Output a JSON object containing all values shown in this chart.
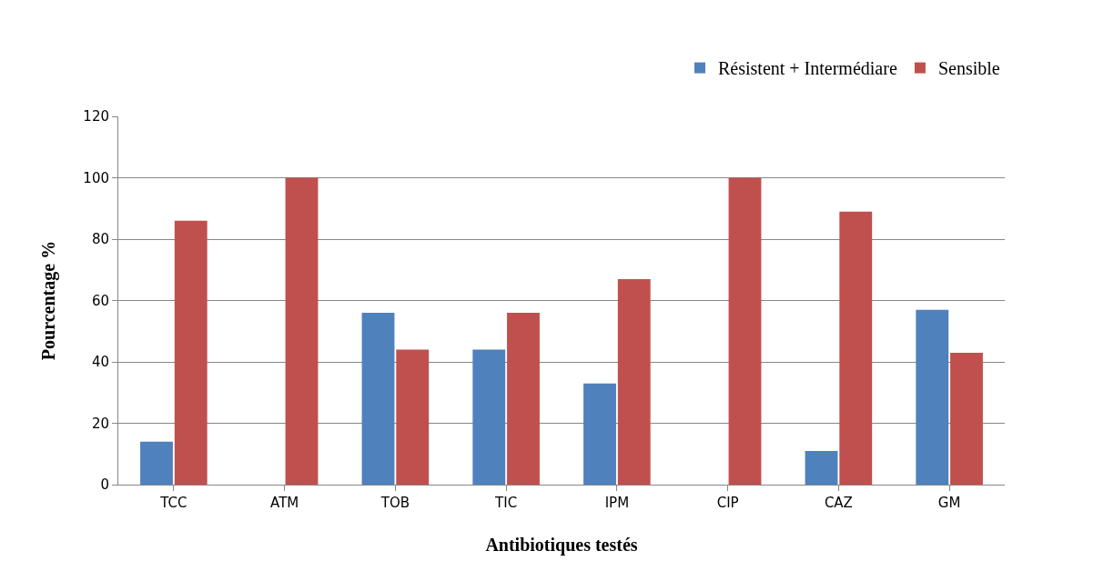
{
  "chart_data": {
    "type": "bar",
    "xlabel": "Antibiotiques testés",
    "ylabel": "Pourcentage %",
    "categories": [
      "TCC",
      "ATM",
      "TOB",
      "TIC",
      "IPM",
      "CIP",
      "CAZ",
      "GM"
    ],
    "series": [
      {
        "name": "Résistent + Intermédiare",
        "color": "#4f81bd",
        "values": [
          14,
          0,
          56,
          44,
          33,
          0,
          11,
          57
        ]
      },
      {
        "name": "Sensible",
        "color": "#c0504d",
        "values": [
          86,
          100,
          44,
          56,
          67,
          100,
          89,
          43
        ]
      }
    ],
    "ylim": [
      0,
      120
    ],
    "yticks": [
      0,
      20,
      40,
      60,
      80,
      100,
      120
    ],
    "grid": "y",
    "legend": "top right"
  }
}
